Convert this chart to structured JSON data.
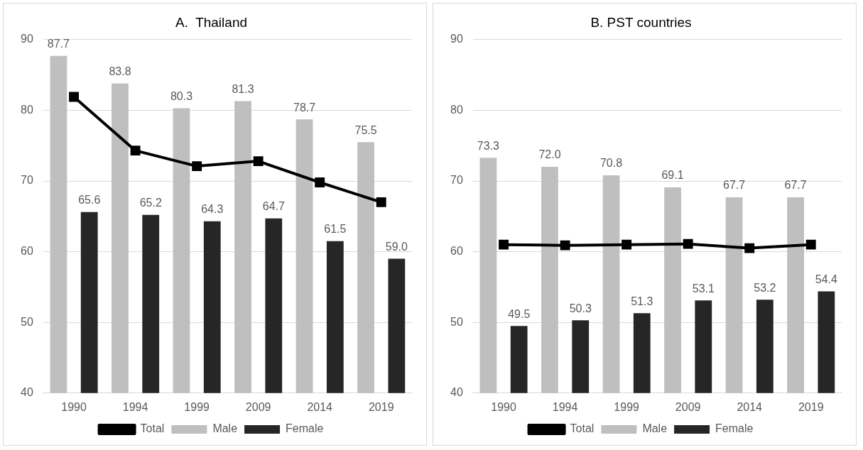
{
  "chart_data": [
    {
      "type": "bar",
      "title": "A.  Thailand",
      "categories": [
        "1990",
        "1994",
        "1999",
        "2009",
        "2014",
        "2019"
      ],
      "ylim": [
        40,
        90
      ],
      "yticks": [
        40,
        50,
        60,
        70,
        80,
        90
      ],
      "grid": "y",
      "legend": "bottom",
      "series": [
        {
          "name": "Male",
          "color": "#bfbfbf",
          "values": [
            87.7,
            83.8,
            80.3,
            81.3,
            78.7,
            75.5
          ],
          "value_labels": [
            "87.7",
            "83.8",
            "80.3",
            "81.3",
            "78.7",
            "75.5"
          ]
        },
        {
          "name": "Female",
          "color": "#262626",
          "values": [
            65.6,
            65.2,
            64.3,
            64.7,
            61.5,
            59.0
          ],
          "value_labels": [
            "65.6",
            "65.2",
            "64.3",
            "64.7",
            "61.5",
            "59.0"
          ]
        },
        {
          "name": "Total",
          "type": "line",
          "color": "#000000",
          "marker": "square",
          "values": [
            81.9,
            74.3,
            72.1,
            72.8,
            69.8,
            67.0
          ]
        }
      ]
    },
    {
      "type": "bar",
      "title": "B. PST countries",
      "categories": [
        "1990",
        "1994",
        "1999",
        "2009",
        "2014",
        "2019"
      ],
      "ylim": [
        40,
        90
      ],
      "yticks": [
        40,
        50,
        60,
        70,
        80,
        90
      ],
      "grid": "y",
      "legend": "bottom",
      "series": [
        {
          "name": "Male",
          "color": "#bfbfbf",
          "values": [
            73.3,
            72.0,
            70.8,
            69.1,
            67.7,
            67.7
          ],
          "value_labels": [
            "73.3",
            "72.0",
            "70.8",
            "69.1",
            "67.7",
            "67.7"
          ]
        },
        {
          "name": "Female",
          "color": "#262626",
          "values": [
            49.5,
            50.3,
            51.3,
            53.1,
            53.2,
            54.4
          ],
          "value_labels": [
            "49.5",
            "50.3",
            "51.3",
            "53.1",
            "53.2",
            "54.4"
          ]
        },
        {
          "name": "Total",
          "type": "line",
          "color": "#000000",
          "marker": "square",
          "values": [
            61.0,
            60.9,
            61.0,
            61.1,
            60.5,
            61.0
          ]
        }
      ]
    }
  ]
}
